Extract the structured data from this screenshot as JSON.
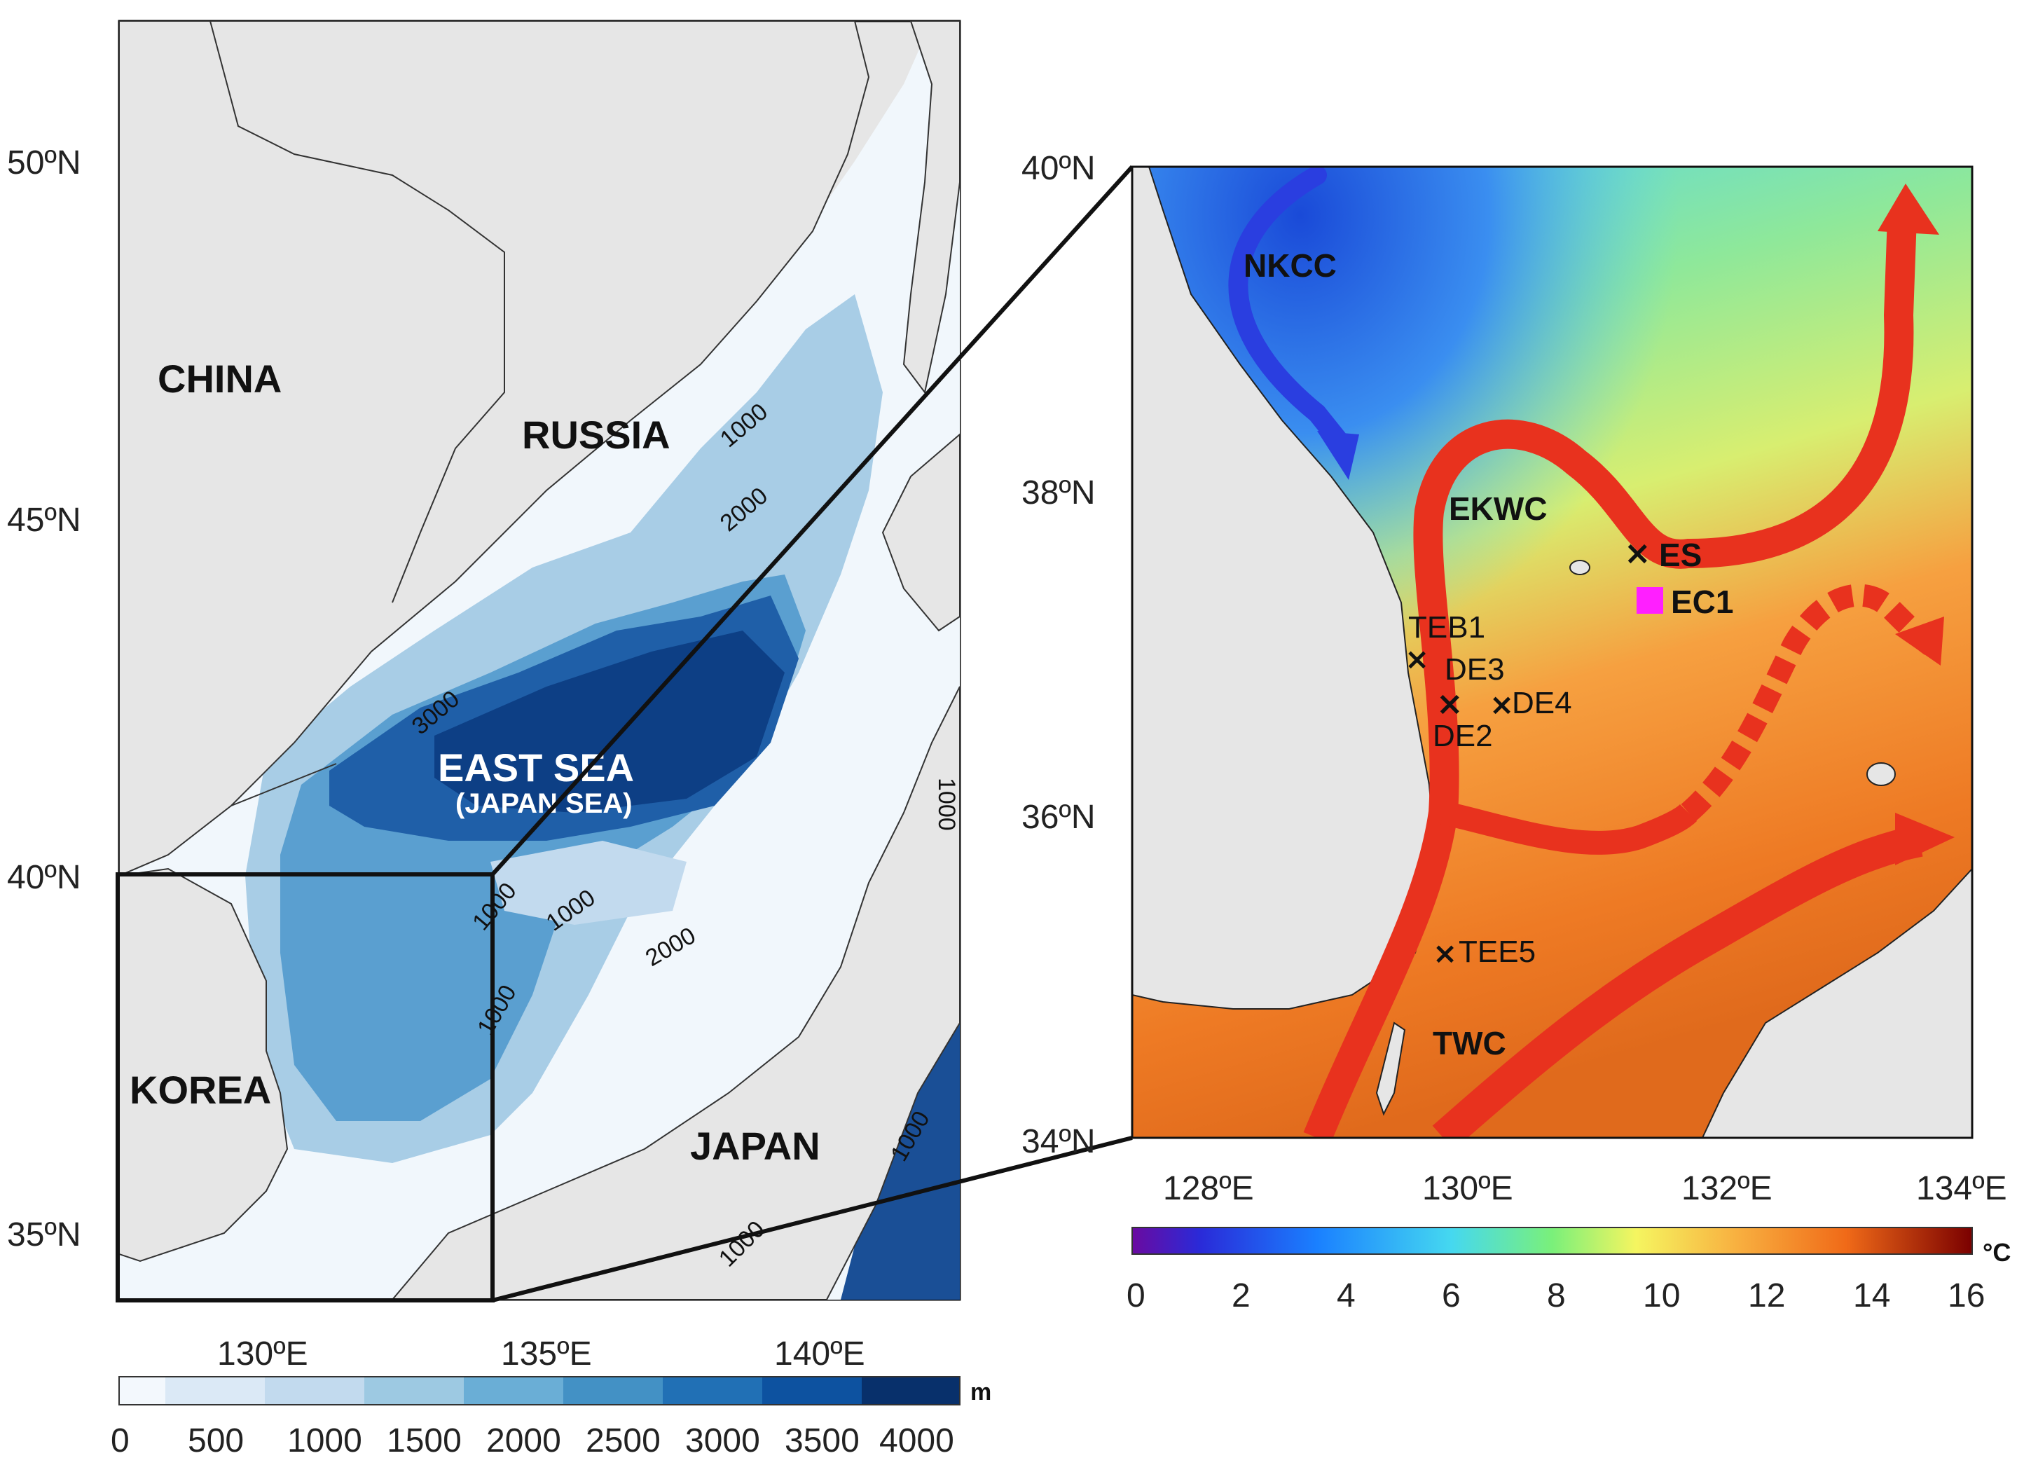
{
  "left_map": {
    "lat_ticks": [
      "50ºN",
      "45ºN",
      "40ºN",
      "35ºN"
    ],
    "lon_ticks": [
      "130ºE",
      "135ºE",
      "140ºE"
    ],
    "countries": {
      "china": "CHINA",
      "russia": "RUSSIA",
      "korea": "KOREA",
      "japan": "JAPAN"
    },
    "sea_name": "EAST SEA",
    "sea_subname": "(JAPAN SEA)",
    "contour_labels": [
      "1000",
      "2000",
      "3000",
      "1000",
      "1000",
      "2000",
      "1000",
      "1000",
      "1000",
      "1000"
    ],
    "colorbar": {
      "unit": "m",
      "ticks": [
        "0",
        "500",
        "1000",
        "1500",
        "2000",
        "2500",
        "3000",
        "3500",
        "4000"
      ],
      "colors": [
        "#f3f8fd",
        "#dbe9f6",
        "#c2daee",
        "#9dc9e2",
        "#6aaed6",
        "#4391c5",
        "#2170b5",
        "#0d52a0",
        "#08306b"
      ]
    }
  },
  "right_map": {
    "lat_ticks": [
      "40ºN",
      "38ºN",
      "36ºN",
      "34ºN"
    ],
    "lon_ticks": [
      "128ºE",
      "130ºE",
      "132ºE",
      "134ºE"
    ],
    "currents": [
      "NKCC",
      "EKWC",
      "TWC"
    ],
    "stations": {
      "es": "ES",
      "ec1": "EC1",
      "teb1": "TEB1",
      "de3": "DE3",
      "de4": "DE4",
      "de2": "DE2",
      "tee5": "TEE5"
    },
    "colorbar": {
      "unit": "°C",
      "ticks": [
        "0",
        "2",
        "4",
        "6",
        "8",
        "10",
        "12",
        "14",
        "16"
      ]
    },
    "colors": {
      "warm_current": "#e8321e",
      "cold_current": "#2a3ee0",
      "ec1_marker": "#ff1fff"
    }
  }
}
